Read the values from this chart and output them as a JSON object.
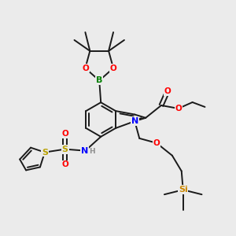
{
  "bg_color": "#ebebeb",
  "bond_color": "#1a1a1a",
  "bond_lw": 1.4,
  "atom_colors": {
    "B": "#008000",
    "O": "#ff0000",
    "N": "#0000ff",
    "S": "#b8a000",
    "Si": "#cc8800",
    "H": "#909090",
    "C": "#1a1a1a"
  },
  "fig_size": [
    3.0,
    3.0
  ],
  "dpi": 100
}
